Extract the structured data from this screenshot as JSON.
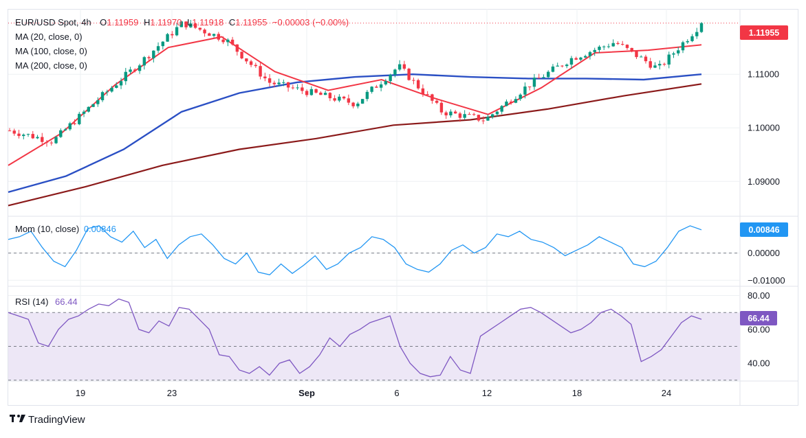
{
  "header": {
    "symbol": "EUR/USD Spot, 4h",
    "open_label": "O",
    "open": "1.11959",
    "high_label": "H",
    "high": "1.11970",
    "low_label": "L",
    "low": "1.11918",
    "close_label": "C",
    "close": "1.11955",
    "change": "−0.00003 (−0.00%)"
  },
  "legend": {
    "ma20": "MA (20, close, 0)",
    "ma100": "MA (100, close, 0)",
    "ma200": "MA (200, close, 0)"
  },
  "price_badge": "1.11955",
  "mom": {
    "label": "Mom (10, close)",
    "value": "0.00846",
    "badge": "0.00846"
  },
  "rsi": {
    "label": "RSI (14)",
    "value": "66.44",
    "badge": "66.44"
  },
  "brand": "TradingView",
  "colors": {
    "up": "#089981",
    "down": "#f23645",
    "ma20": "#f23645",
    "ma100": "#2a4fc4",
    "ma200": "#8b1a1a",
    "mom": "#2196f3",
    "rsi": "#7e57c2",
    "rsi_band": "#ede7f6",
    "grid": "#eef0f3",
    "axis_text": "#131722"
  },
  "chart_data": [
    {
      "type": "candlestick",
      "title": "EUR/USD Spot, 4h",
      "x_tick_labels": [
        "19",
        "23",
        "Sep",
        "6",
        "12",
        "18",
        "24"
      ],
      "y_tick_labels": [
        "1.09000",
        "1.10000",
        "1.11000"
      ],
      "ylim": [
        1.0835,
        1.1222
      ],
      "last_close": 1.11955,
      "close_path_keypoints": [
        {
          "date": "Aug 16",
          "close": 1.0995
        },
        {
          "date": "Aug 17",
          "close": 1.0975
        },
        {
          "date": "Aug 19",
          "close": 1.105
        },
        {
          "date": "Aug 21",
          "close": 1.112
        },
        {
          "date": "Aug 23",
          "close": 1.1196
        },
        {
          "date": "Aug 26",
          "close": 1.1165
        },
        {
          "date": "Aug 28",
          "close": 1.1085
        },
        {
          "date": "Aug 30",
          "close": 1.1065
        },
        {
          "date": "Sep 3",
          "close": 1.1045
        },
        {
          "date": "Sep 6",
          "close": 1.1115
        },
        {
          "date": "Sep 9",
          "close": 1.103
        },
        {
          "date": "Sep 11",
          "close": 1.1015
        },
        {
          "date": "Sep 13",
          "close": 1.108
        },
        {
          "date": "Sep 17",
          "close": 1.113
        },
        {
          "date": "Sep 20",
          "close": 1.116
        },
        {
          "date": "Sep 23",
          "close": 1.111
        },
        {
          "date": "Sep 25",
          "close": 1.1195
        }
      ],
      "series": [
        {
          "name": "MA (20, close, 0)",
          "values": [
            1.093,
            1.099,
            1.108,
            1.115,
            1.117,
            1.1105,
            1.107,
            1.109,
            1.1055,
            1.1025,
            1.1075,
            1.114,
            1.1145,
            1.1155
          ]
        },
        {
          "name": "MA (100, close, 0)",
          "values": [
            1.088,
            1.091,
            1.096,
            1.103,
            1.1065,
            1.1085,
            1.1095,
            1.11,
            1.1095,
            1.1092,
            1.1092,
            1.109,
            1.11
          ]
        },
        {
          "name": "MA (200, close, 0)",
          "values": [
            1.0855,
            1.089,
            1.093,
            1.096,
            1.098,
            1.1005,
            1.1015,
            1.1035,
            1.106,
            1.1082
          ]
        }
      ]
    },
    {
      "type": "line",
      "title": "Mom (10, close)",
      "y_tick_labels": [
        "0.00000",
        "−0.01000"
      ],
      "ylim": [
        -0.0122,
        0.0135
      ],
      "reference_line": 0,
      "values": [
        0.005,
        0.006,
        0.008,
        0.002,
        -0.003,
        -0.005,
        0.001,
        0.009,
        0.01,
        0.006,
        0.004,
        0.008,
        0.002,
        0.005,
        -0.002,
        0.003,
        0.006,
        0.007,
        0.003,
        -0.002,
        -0.004,
        0.0,
        -0.007,
        -0.008,
        -0.004,
        -0.0075,
        -0.0045,
        -0.001,
        -0.006,
        -0.004,
        0.0,
        0.002,
        0.006,
        0.005,
        0.002,
        -0.004,
        -0.006,
        -0.007,
        -0.004,
        0.001,
        0.003,
        0.0,
        0.002,
        0.007,
        0.006,
        0.008,
        0.005,
        0.004,
        0.002,
        -0.001,
        0.001,
        0.003,
        0.006,
        0.004,
        0.002,
        -0.004,
        -0.005,
        -0.003,
        0.002,
        0.008,
        0.01,
        0.0085
      ]
    },
    {
      "type": "line",
      "title": "RSI (14)",
      "y_tick_labels": [
        "40.00",
        "60.00",
        "80.00"
      ],
      "ylim": [
        29.5,
        85.5
      ],
      "band": [
        30,
        70
      ],
      "midline": 50,
      "values": [
        70,
        68,
        66,
        52,
        50,
        60,
        66,
        68,
        72,
        75,
        74,
        78,
        76,
        60,
        58,
        65,
        62,
        73,
        72,
        66,
        60,
        45,
        44,
        36,
        34,
        38,
        33,
        40,
        42,
        34,
        38,
        45,
        55,
        50,
        57,
        60,
        64,
        66,
        68,
        50,
        40,
        34,
        32,
        33,
        44,
        36,
        34,
        56,
        60,
        64,
        68,
        72,
        73,
        70,
        66,
        62,
        58,
        60,
        64,
        70,
        72,
        68,
        63,
        41,
        44,
        48,
        56,
        64,
        68,
        66
      ]
    }
  ]
}
